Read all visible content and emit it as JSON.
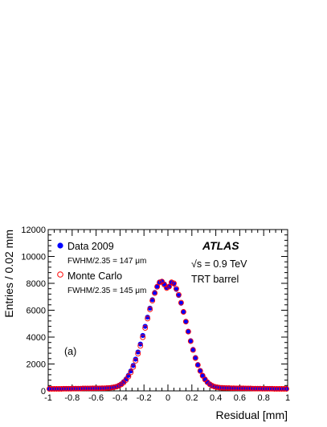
{
  "chart_data": {
    "type": "scatter",
    "xlabel": "Residual [mm]",
    "ylabel": "Entries / 0.02 mm",
    "xlim": [
      -1,
      1
    ],
    "ylim": [
      0,
      12000
    ],
    "x_ticks": [
      "-1",
      "-0.8",
      "-0.6",
      "-0.4",
      "-0.2",
      "0",
      "0.2",
      "0.4",
      "0.6",
      "0.8",
      "1"
    ],
    "y_ticks": [
      "0",
      "2000",
      "4000",
      "6000",
      "8000",
      "10000",
      "12000"
    ],
    "annotations": {
      "experiment": "ATLAS",
      "energy": "√s = 0.9 TeV",
      "detector": "TRT barrel",
      "panel": "(a)"
    },
    "series": [
      {
        "name": "Data 2009",
        "sublabel": "FWHM/2.35 = 147 μm",
        "marker": "filled-circle",
        "color": "#0000ff",
        "x": [
          -0.99,
          -0.97,
          -0.95,
          -0.93,
          -0.91,
          -0.89,
          -0.87,
          -0.85,
          -0.83,
          -0.81,
          -0.79,
          -0.77,
          -0.75,
          -0.73,
          -0.71,
          -0.69,
          -0.67,
          -0.65,
          -0.63,
          -0.61,
          -0.59,
          -0.57,
          -0.55,
          -0.53,
          -0.51,
          -0.49,
          -0.47,
          -0.45,
          -0.43,
          -0.41,
          -0.39,
          -0.37,
          -0.35,
          -0.33,
          -0.31,
          -0.29,
          -0.27,
          -0.25,
          -0.23,
          -0.21,
          -0.19,
          -0.17,
          -0.15,
          -0.13,
          -0.11,
          -0.09,
          -0.07,
          -0.05,
          -0.03,
          -0.01,
          0.01,
          0.03,
          0.05,
          0.07,
          0.09,
          0.11,
          0.13,
          0.15,
          0.17,
          0.19,
          0.21,
          0.23,
          0.25,
          0.27,
          0.29,
          0.31,
          0.33,
          0.35,
          0.37,
          0.39,
          0.41,
          0.43,
          0.45,
          0.47,
          0.49,
          0.51,
          0.53,
          0.55,
          0.57,
          0.59,
          0.61,
          0.63,
          0.65,
          0.67,
          0.69,
          0.71,
          0.73,
          0.75,
          0.77,
          0.79,
          0.81,
          0.83,
          0.85,
          0.87,
          0.89,
          0.91,
          0.93,
          0.95,
          0.97,
          0.99
        ],
        "y": [
          160,
          160,
          160,
          160,
          160,
          160,
          170,
          170,
          170,
          170,
          180,
          180,
          180,
          180,
          190,
          190,
          190,
          190,
          200,
          200,
          200,
          200,
          210,
          210,
          220,
          230,
          250,
          280,
          330,
          410,
          520,
          680,
          880,
          1150,
          1480,
          1890,
          2360,
          2890,
          3480,
          4120,
          4800,
          5480,
          6150,
          6780,
          7320,
          7780,
          8100,
          8150,
          7950,
          7700,
          7780,
          8050,
          7950,
          7550,
          7100,
          6520,
          5860,
          5150,
          4430,
          3730,
          3080,
          2480,
          1960,
          1520,
          1160,
          880,
          660,
          500,
          390,
          320,
          280,
          250,
          240,
          230,
          220,
          220,
          210,
          210,
          200,
          200,
          200,
          200,
          190,
          190,
          190,
          180,
          180,
          180,
          180,
          170,
          170,
          170,
          170,
          170,
          160,
          160,
          160,
          160,
          160,
          160
        ]
      },
      {
        "name": "Monte Carlo",
        "sublabel": "FWHM/2.35 = 145 μm",
        "marker": "open-circle",
        "color": "#ff0000",
        "x": [
          -0.99,
          -0.97,
          -0.95,
          -0.93,
          -0.91,
          -0.89,
          -0.87,
          -0.85,
          -0.83,
          -0.81,
          -0.79,
          -0.77,
          -0.75,
          -0.73,
          -0.71,
          -0.69,
          -0.67,
          -0.65,
          -0.63,
          -0.61,
          -0.59,
          -0.57,
          -0.55,
          -0.53,
          -0.51,
          -0.49,
          -0.47,
          -0.45,
          -0.43,
          -0.41,
          -0.39,
          -0.37,
          -0.35,
          -0.33,
          -0.31,
          -0.29,
          -0.27,
          -0.25,
          -0.23,
          -0.21,
          -0.19,
          -0.17,
          -0.15,
          -0.13,
          -0.11,
          -0.09,
          -0.07,
          -0.05,
          -0.03,
          -0.01,
          0.01,
          0.03,
          0.05,
          0.07,
          0.09,
          0.11,
          0.13,
          0.15,
          0.17,
          0.19,
          0.21,
          0.23,
          0.25,
          0.27,
          0.29,
          0.31,
          0.33,
          0.35,
          0.37,
          0.39,
          0.41,
          0.43,
          0.45,
          0.47,
          0.49,
          0.51,
          0.53,
          0.55,
          0.57,
          0.59,
          0.61,
          0.63,
          0.65,
          0.67,
          0.69,
          0.71,
          0.73,
          0.75,
          0.77,
          0.79,
          0.81,
          0.83,
          0.85,
          0.87,
          0.89,
          0.91,
          0.93,
          0.95,
          0.97,
          0.99
        ],
        "y": [
          150,
          150,
          150,
          150,
          150,
          150,
          160,
          160,
          160,
          160,
          170,
          170,
          170,
          170,
          180,
          180,
          180,
          180,
          190,
          190,
          190,
          190,
          200,
          200,
          210,
          220,
          240,
          270,
          310,
          380,
          480,
          620,
          810,
          1060,
          1380,
          1780,
          2240,
          2770,
          3350,
          3990,
          4680,
          5380,
          6060,
          6710,
          7270,
          7740,
          8060,
          8130,
          7900,
          7650,
          7760,
          8080,
          8000,
          7600,
          7150,
          6560,
          5880,
          5150,
          4410,
          3700,
          3040,
          2440,
          1920,
          1480,
          1120,
          850,
          640,
          490,
          380,
          310,
          270,
          240,
          230,
          220,
          210,
          210,
          200,
          200,
          190,
          190,
          190,
          190,
          180,
          180,
          180,
          170,
          170,
          170,
          170,
          160,
          160,
          160,
          160,
          160,
          150,
          150,
          150,
          150,
          150,
          150
        ]
      }
    ],
    "legend": "top-left",
    "grid": false
  }
}
